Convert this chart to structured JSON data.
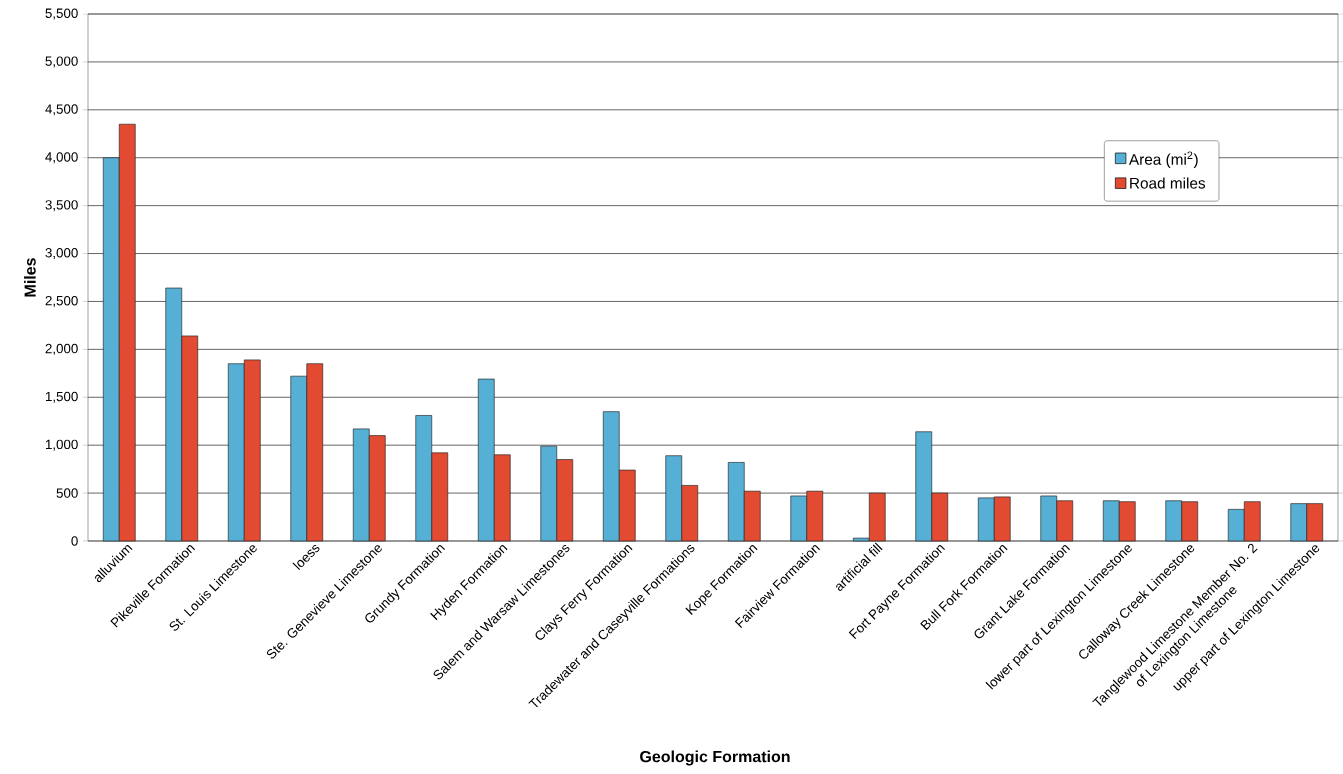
{
  "chart_data": {
    "type": "bar",
    "xlabel": "Geologic Formation",
    "ylabel": "Miles",
    "categories": [
      "alluvium",
      "Pikeville Formation",
      "St. Louis Limestone",
      "loess",
      "Ste. Genevieve Limestone",
      "Grundy Formation",
      "Hyden Formation",
      "Salem and Warsaw Limestones",
      "Clays Ferry Formation",
      "Tradewater and Caseyville Formations",
      "Kope Formation",
      "Fairview Formation",
      "artificial fill",
      "Fort Payne Formation",
      "Bull Fork Formation",
      "Grant Lake Formation",
      "lower part of Lexington Limestone",
      "Calloway Creek Limestone",
      "Tanglewood Limestone Member No. 2 of Lexington Limestone",
      "upper part of Lexington Limestone"
    ],
    "series": [
      {
        "name": "Area (mi$^{2}$)",
        "color": "#56b0d6",
        "values": [
          4000,
          2640,
          1850,
          1720,
          1170,
          1310,
          1690,
          990,
          1350,
          890,
          820,
          470,
          30,
          1140,
          450,
          470,
          420,
          420,
          330,
          390
        ]
      },
      {
        "name": "Road miles",
        "color": "#e24b32",
        "values": [
          4350,
          2140,
          1890,
          1850,
          1100,
          920,
          900,
          850,
          740,
          580,
          520,
          520,
          500,
          500,
          460,
          420,
          410,
          410,
          410,
          390
        ]
      }
    ],
    "ylim": [
      0,
      5500
    ],
    "yticks": [
      0,
      {
        "value": 500,
        "label": "500"
      },
      {
        "value": 1000,
        "label": "1,000"
      },
      {
        "value": 1500,
        "label": "1,500"
      },
      {
        "value": 2000,
        "label": "2,000"
      },
      {
        "value": 2500,
        "label": "2,500"
      },
      {
        "value": 3000,
        "label": "3,000"
      },
      {
        "value": 3500,
        "label": "3,500"
      },
      {
        "value": 4000,
        "label": "4,000"
      },
      {
        "value": 4500,
        "label": "4,500"
      },
      {
        "value": 5000,
        "label": "5,000"
      },
      {
        "value": 5500,
        "label": "5,500"
      }
    ],
    "grid": "y",
    "legend": "top right"
  }
}
